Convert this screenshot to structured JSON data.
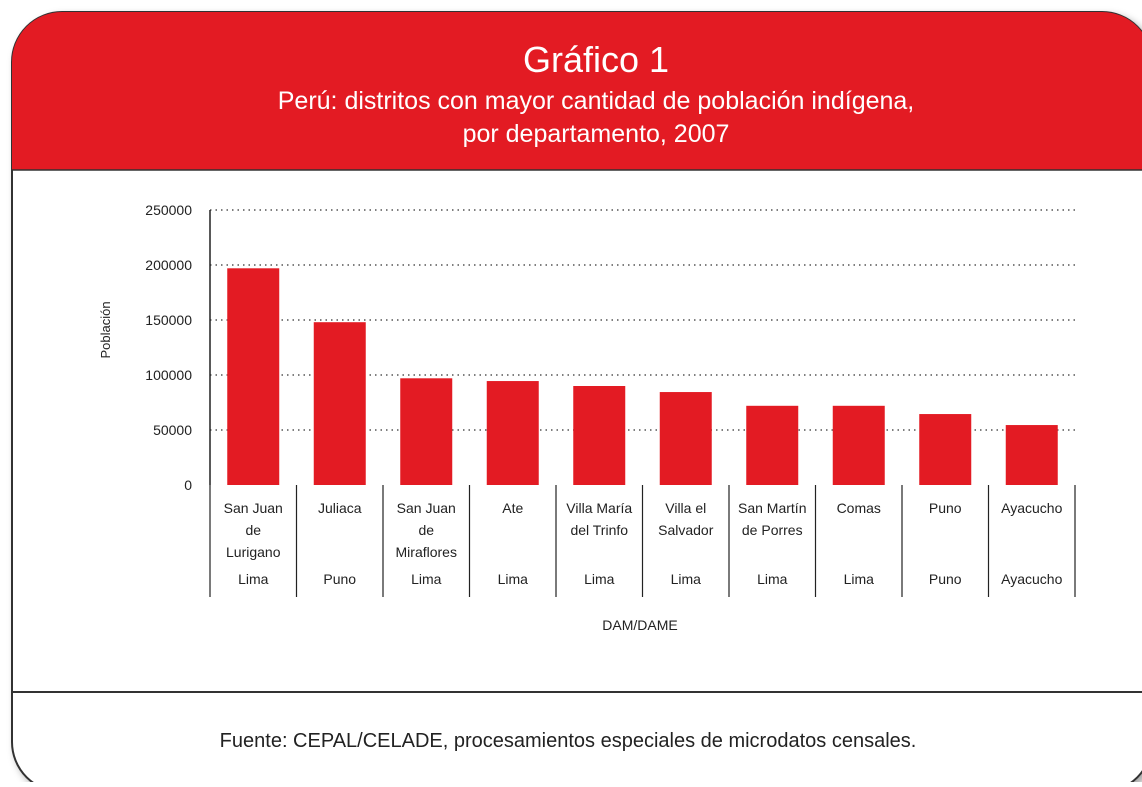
{
  "chart_data": {
    "type": "bar",
    "title": "Gráfico 1",
    "subtitle": [
      "Perú: distritos con mayor cantidad de población indígena,",
      "por departamento, 2007"
    ],
    "categories": [
      "San Juan\nde\nLurigano",
      "Juliaca",
      "San Juan\nde\nMiraflores",
      "Ate",
      "Villa María\ndel Trinfo",
      "Villa el\nSalvador",
      "San Martín\nde Porres",
      "Comas",
      "Puno",
      "Ayacucho"
    ],
    "departments": [
      "Lima",
      "Puno",
      "Lima",
      "Lima",
      "Lima",
      "Lima",
      "Lima",
      "Lima",
      "Puno",
      "Ayacucho"
    ],
    "values": [
      197000,
      148000,
      97000,
      94500,
      90000,
      84500,
      72000,
      72000,
      64500,
      54500
    ],
    "color": "#e31b23",
    "ylim": [
      0,
      250000
    ],
    "yticks": [
      0,
      50000,
      100000,
      150000,
      200000,
      250000
    ],
    "grid": true,
    "ylabel": "Población",
    "xlabel": "DAM/DAME",
    "source": "Fuente: CEPAL/CELADE, procesamientos especiales de microdatos censales."
  }
}
